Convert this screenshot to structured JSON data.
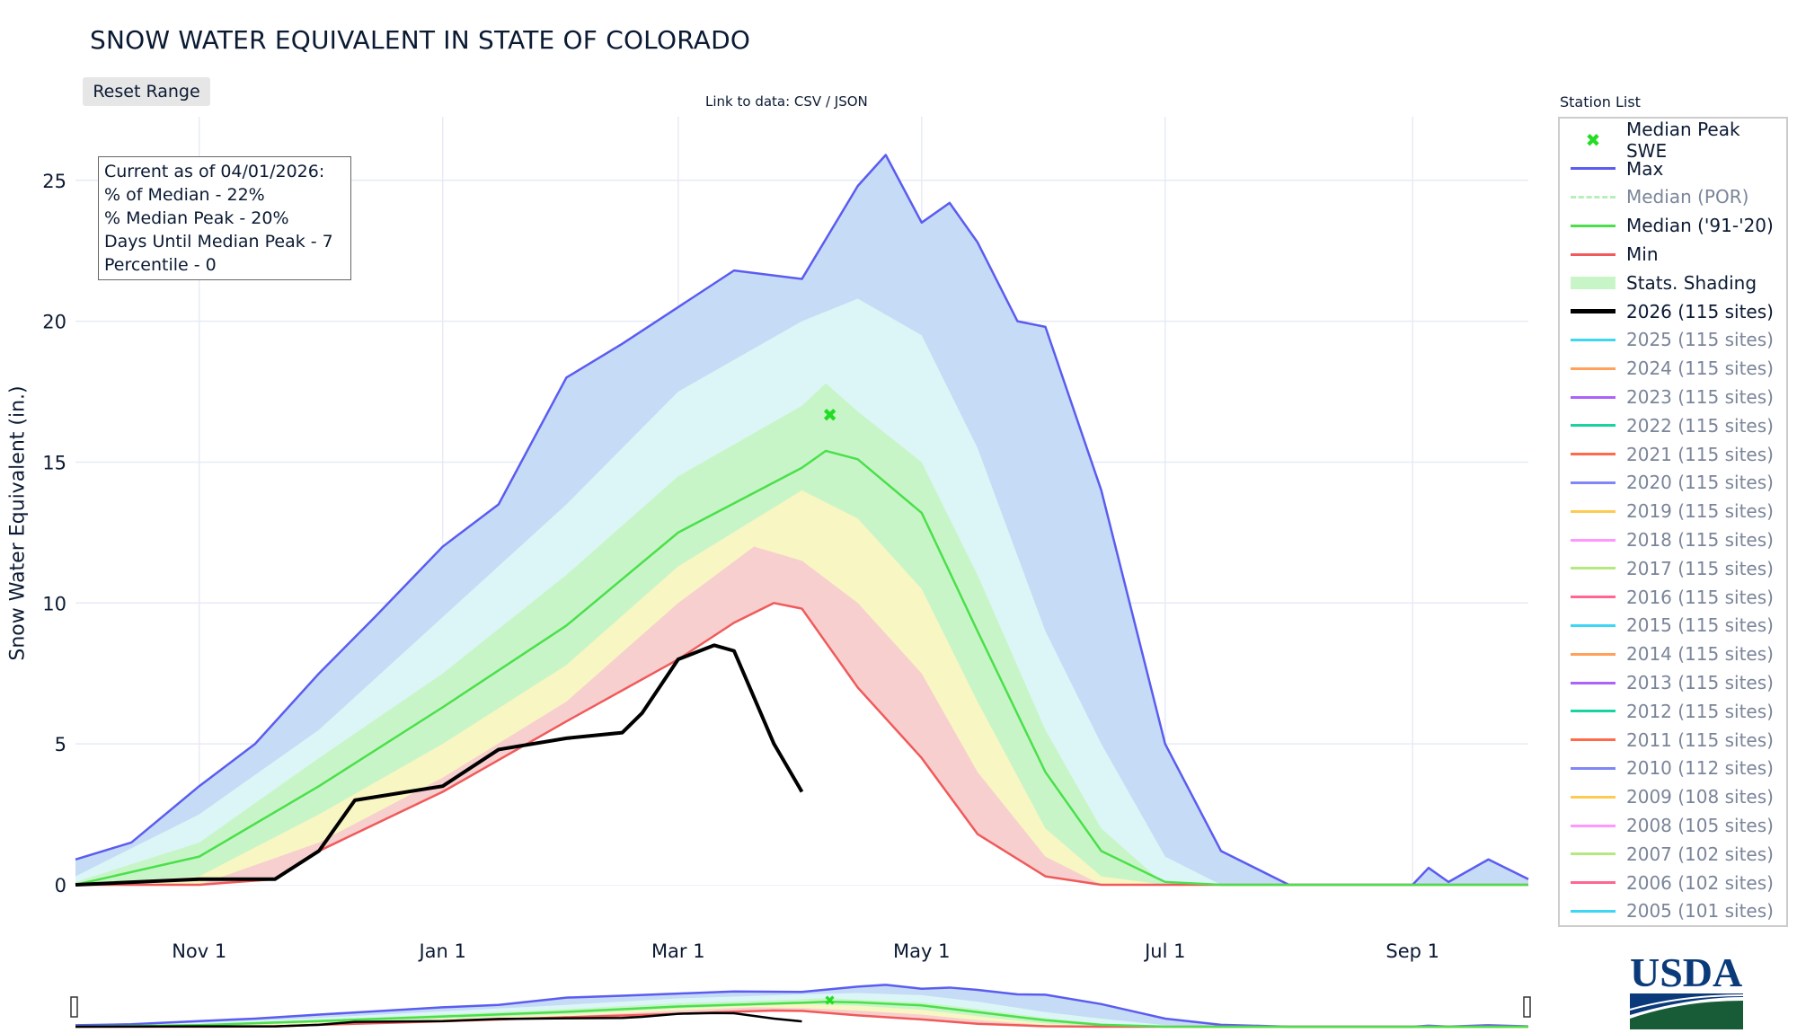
{
  "title": "SNOW WATER EQUIVALENT IN STATE OF COLORADO",
  "reset_label": "Reset Range",
  "link_text": "Link to data: CSV / JSON",
  "info_box": [
    "Current as of 04/01/2026:",
    "% of Median - 22%",
    "% Median Peak - 20%",
    "Days Until Median Peak - 7",
    "Percentile - 0"
  ],
  "legend_title": "Station List",
  "legend": [
    {
      "label": "Median Peak SWE",
      "color": "#22dd22",
      "style": "marker",
      "active": true
    },
    {
      "label": "Max",
      "color": "#5b5cf0",
      "style": "line",
      "active": true
    },
    {
      "label": "Median (POR)",
      "color": "#b6f0b6",
      "style": "dash",
      "active": false
    },
    {
      "label": "Median ('91-'20)",
      "color": "#4be04b",
      "style": "line",
      "active": true
    },
    {
      "label": "Min",
      "color": "#f05a5a",
      "style": "line",
      "active": true
    },
    {
      "label": "Stats. Shading",
      "color": "#c8f5c8",
      "style": "block",
      "active": true
    },
    {
      "label": "2026 (115 sites)",
      "color": "#000000",
      "style": "thick",
      "active": true
    },
    {
      "label": "2025 (115 sites)",
      "color": "#3dd6f5",
      "style": "line",
      "active": false
    },
    {
      "label": "2024 (115 sites)",
      "color": "#ffa15a",
      "style": "line",
      "active": false
    },
    {
      "label": "2023 (115 sites)",
      "color": "#ab63fa",
      "style": "line",
      "active": false
    },
    {
      "label": "2022 (115 sites)",
      "color": "#19d3a0",
      "style": "line",
      "active": false
    },
    {
      "label": "2021 (115 sites)",
      "color": "#ff6a4a",
      "style": "line",
      "active": false
    },
    {
      "label": "2020 (115 sites)",
      "color": "#7f86f5",
      "style": "line",
      "active": false
    },
    {
      "label": "2019 (115 sites)",
      "color": "#fecb52",
      "style": "line",
      "active": false
    },
    {
      "label": "2018 (115 sites)",
      "color": "#ff97ff",
      "style": "line",
      "active": false
    },
    {
      "label": "2017 (115 sites)",
      "color": "#b6e880",
      "style": "line",
      "active": false
    },
    {
      "label": "2016 (115 sites)",
      "color": "#ff6692",
      "style": "line",
      "active": false
    },
    {
      "label": "2015 (115 sites)",
      "color": "#3dd6f5",
      "style": "line",
      "active": false
    },
    {
      "label": "2014 (115 sites)",
      "color": "#ffa15a",
      "style": "line",
      "active": false
    },
    {
      "label": "2013 (115 sites)",
      "color": "#ab63fa",
      "style": "line",
      "active": false
    },
    {
      "label": "2012 (115 sites)",
      "color": "#19d3a0",
      "style": "line",
      "active": false
    },
    {
      "label": "2011 (115 sites)",
      "color": "#ff6a4a",
      "style": "line",
      "active": false
    },
    {
      "label": "2010 (112 sites)",
      "color": "#7f86f5",
      "style": "line",
      "active": false
    },
    {
      "label": "2009 (108 sites)",
      "color": "#fecb52",
      "style": "line",
      "active": false
    },
    {
      "label": "2008 (105 sites)",
      "color": "#ff97ff",
      "style": "line",
      "active": false
    },
    {
      "label": "2007 (102 sites)",
      "color": "#b6e880",
      "style": "line",
      "active": false
    },
    {
      "label": "2006 (102 sites)",
      "color": "#ff6692",
      "style": "line",
      "active": false
    },
    {
      "label": "2005 (101 sites)",
      "color": "#3dd6f5",
      "style": "line",
      "active": false
    }
  ],
  "logo_text": "USDA",
  "chart_data": {
    "type": "area",
    "title": "SNOW WATER EQUIVALENT IN STATE OF COLORADO",
    "xlabel": "",
    "ylabel": "Snow Water Equivalent (in.)",
    "xlim": [
      "2025-10-01",
      "2026-09-30"
    ],
    "ylim": [
      0,
      26.5
    ],
    "x_ticks": [
      {
        "date": "2025-11-01",
        "label": "Nov 1"
      },
      {
        "date": "2026-01-01",
        "label": "Jan 1"
      },
      {
        "date": "2026-03-01",
        "label": "Mar 1"
      },
      {
        "date": "2026-05-01",
        "label": "May 1"
      },
      {
        "date": "2026-07-01",
        "label": "Jul 1"
      },
      {
        "date": "2026-09-01",
        "label": "Sep 1"
      }
    ],
    "y_ticks": [
      0,
      5,
      10,
      15,
      20,
      25
    ],
    "grid": true,
    "legend_placement": "right",
    "shading_bands": [
      {
        "color": "#c6dcf6",
        "points": [
          [
            "2025-10-01",
            0.9
          ],
          [
            "2025-10-15",
            1.5
          ],
          [
            "2025-11-01",
            3.5
          ],
          [
            "2025-11-15",
            5
          ],
          [
            "2025-12-01",
            7.5
          ],
          [
            "2025-12-15",
            9.5
          ],
          [
            "2026-01-01",
            12
          ],
          [
            "2026-01-15",
            13.5
          ],
          [
            "2026-02-01",
            18
          ],
          [
            "2026-02-15",
            19.2
          ],
          [
            "2026-03-01",
            20.5
          ],
          [
            "2026-03-15",
            21.8
          ],
          [
            "2026-04-01",
            21.5
          ],
          [
            "2026-04-15",
            24.8
          ],
          [
            "2026-04-22",
            25.9
          ],
          [
            "2026-05-01",
            23.5
          ],
          [
            "2026-05-08",
            24.2
          ],
          [
            "2026-05-15",
            22.8
          ],
          [
            "2026-05-25",
            20
          ],
          [
            "2026-06-01",
            19.8
          ],
          [
            "2026-06-15",
            14
          ],
          [
            "2026-07-01",
            5
          ],
          [
            "2026-07-15",
            1.2
          ],
          [
            "2026-08-01",
            0
          ],
          [
            "2026-09-01",
            0
          ],
          [
            "2026-09-05",
            0.6
          ],
          [
            "2026-09-10",
            0.1
          ],
          [
            "2026-09-20",
            0.9
          ],
          [
            "2026-09-30",
            0.2
          ]
        ]
      },
      {
        "color": "#dcf6f7",
        "points": [
          [
            "2025-10-01",
            0.3
          ],
          [
            "2025-11-01",
            2.5
          ],
          [
            "2025-12-01",
            5.5
          ],
          [
            "2026-01-01",
            9.5
          ],
          [
            "2026-02-01",
            13.5
          ],
          [
            "2026-03-01",
            17.5
          ],
          [
            "2026-04-01",
            20
          ],
          [
            "2026-04-15",
            20.8
          ],
          [
            "2026-05-01",
            19.5
          ],
          [
            "2026-05-15",
            15.5
          ],
          [
            "2026-06-01",
            9
          ],
          [
            "2026-06-15",
            5
          ],
          [
            "2026-07-01",
            1
          ],
          [
            "2026-07-15",
            0
          ],
          [
            "2026-09-30",
            0
          ]
        ]
      },
      {
        "color": "#c8f5c8",
        "points": [
          [
            "2025-10-01",
            0.1
          ],
          [
            "2025-11-01",
            1.5
          ],
          [
            "2025-12-01",
            4.5
          ],
          [
            "2026-01-01",
            7.5
          ],
          [
            "2026-02-01",
            11
          ],
          [
            "2026-03-01",
            14.5
          ],
          [
            "2026-04-01",
            17
          ],
          [
            "2026-04-07",
            17.8
          ],
          [
            "2026-04-15",
            16.8
          ],
          [
            "2026-05-01",
            15
          ],
          [
            "2026-05-15",
            11
          ],
          [
            "2026-06-01",
            5.5
          ],
          [
            "2026-06-15",
            2
          ],
          [
            "2026-07-01",
            0
          ],
          [
            "2026-09-30",
            0
          ]
        ]
      },
      {
        "color": "#f8f6c2",
        "points": [
          [
            "2025-10-01",
            0
          ],
          [
            "2025-11-01",
            0.3
          ],
          [
            "2025-12-01",
            2.5
          ],
          [
            "2026-01-01",
            5
          ],
          [
            "2026-02-01",
            7.8
          ],
          [
            "2026-03-01",
            11.3
          ],
          [
            "2026-04-01",
            14
          ],
          [
            "2026-04-15",
            13
          ],
          [
            "2026-05-01",
            10.5
          ],
          [
            "2026-05-15",
            6.5
          ],
          [
            "2026-06-01",
            2
          ],
          [
            "2026-06-15",
            0.3
          ],
          [
            "2026-07-01",
            0
          ],
          [
            "2026-09-30",
            0
          ]
        ]
      },
      {
        "color": "#f7cfcf",
        "points": [
          [
            "2025-10-01",
            0
          ],
          [
            "2025-11-01",
            0
          ],
          [
            "2025-12-01",
            1.5
          ],
          [
            "2026-01-01",
            3.8
          ],
          [
            "2026-02-01",
            6.5
          ],
          [
            "2026-03-01",
            10
          ],
          [
            "2026-03-20",
            12
          ],
          [
            "2026-04-01",
            11.5
          ],
          [
            "2026-04-15",
            10
          ],
          [
            "2026-05-01",
            7.5
          ],
          [
            "2026-05-15",
            4
          ],
          [
            "2026-06-01",
            1
          ],
          [
            "2026-06-15",
            0
          ],
          [
            "2026-09-30",
            0
          ]
        ]
      }
    ],
    "series": [
      {
        "name": "Max",
        "color": "#5b5cf0",
        "points": [
          [
            "2025-10-01",
            0.9
          ],
          [
            "2025-10-15",
            1.5
          ],
          [
            "2025-11-01",
            3.5
          ],
          [
            "2025-11-15",
            5
          ],
          [
            "2025-12-01",
            7.5
          ],
          [
            "2025-12-15",
            9.5
          ],
          [
            "2026-01-01",
            12
          ],
          [
            "2026-01-15",
            13.5
          ],
          [
            "2026-02-01",
            18
          ],
          [
            "2026-02-15",
            19.2
          ],
          [
            "2026-03-01",
            20.5
          ],
          [
            "2026-03-15",
            21.8
          ],
          [
            "2026-04-01",
            21.5
          ],
          [
            "2026-04-15",
            24.8
          ],
          [
            "2026-04-22",
            25.9
          ],
          [
            "2026-05-01",
            23.5
          ],
          [
            "2026-05-08",
            24.2
          ],
          [
            "2026-05-15",
            22.8
          ],
          [
            "2026-05-25",
            20
          ],
          [
            "2026-06-01",
            19.8
          ],
          [
            "2026-06-15",
            14
          ],
          [
            "2026-07-01",
            5
          ],
          [
            "2026-07-15",
            1.2
          ],
          [
            "2026-08-01",
            0
          ],
          [
            "2026-09-01",
            0
          ],
          [
            "2026-09-05",
            0.6
          ],
          [
            "2026-09-10",
            0.1
          ],
          [
            "2026-09-20",
            0.9
          ],
          [
            "2026-09-30",
            0.2
          ]
        ]
      },
      {
        "name": "Min",
        "color": "#f05a5a",
        "points": [
          [
            "2025-10-01",
            0
          ],
          [
            "2025-11-01",
            0
          ],
          [
            "2025-11-20",
            0.2
          ],
          [
            "2025-12-01",
            1.2
          ],
          [
            "2026-01-01",
            3.3
          ],
          [
            "2026-02-01",
            5.8
          ],
          [
            "2026-03-01",
            8
          ],
          [
            "2026-03-15",
            9.3
          ],
          [
            "2026-03-25",
            10
          ],
          [
            "2026-04-01",
            9.8
          ],
          [
            "2026-04-15",
            7
          ],
          [
            "2026-05-01",
            4.5
          ],
          [
            "2026-05-15",
            1.8
          ],
          [
            "2026-06-01",
            0.3
          ],
          [
            "2026-06-15",
            0
          ],
          [
            "2026-09-30",
            0
          ]
        ]
      },
      {
        "name": "Median ('91-'20)",
        "color": "#4be04b",
        "points": [
          [
            "2025-10-01",
            0
          ],
          [
            "2025-11-01",
            1
          ],
          [
            "2025-12-01",
            3.5
          ],
          [
            "2026-01-01",
            6.3
          ],
          [
            "2026-02-01",
            9.2
          ],
          [
            "2026-03-01",
            12.5
          ],
          [
            "2026-04-01",
            14.8
          ],
          [
            "2026-04-07",
            15.4
          ],
          [
            "2026-04-15",
            15.1
          ],
          [
            "2026-05-01",
            13.2
          ],
          [
            "2026-05-15",
            9
          ],
          [
            "2026-06-01",
            4
          ],
          [
            "2026-06-15",
            1.2
          ],
          [
            "2026-07-01",
            0.1
          ],
          [
            "2026-07-15",
            0
          ],
          [
            "2026-09-30",
            0
          ]
        ]
      },
      {
        "name": "2026 (115 sites)",
        "color": "#000000",
        "points": [
          [
            "2025-10-01",
            0
          ],
          [
            "2025-11-01",
            0.2
          ],
          [
            "2025-11-20",
            0.2
          ],
          [
            "2025-12-01",
            1.2
          ],
          [
            "2025-12-10",
            3
          ],
          [
            "2026-01-01",
            3.5
          ],
          [
            "2026-01-15",
            4.8
          ],
          [
            "2026-02-01",
            5.2
          ],
          [
            "2026-02-15",
            5.4
          ],
          [
            "2026-02-20",
            6.1
          ],
          [
            "2026-03-01",
            8
          ],
          [
            "2026-03-10",
            8.5
          ],
          [
            "2026-03-15",
            8.3
          ],
          [
            "2026-03-25",
            5
          ],
          [
            "2026-04-01",
            3.3
          ]
        ]
      }
    ],
    "median_peak": {
      "name": "Median Peak SWE",
      "date": "2026-04-08",
      "value": 16.7
    }
  }
}
